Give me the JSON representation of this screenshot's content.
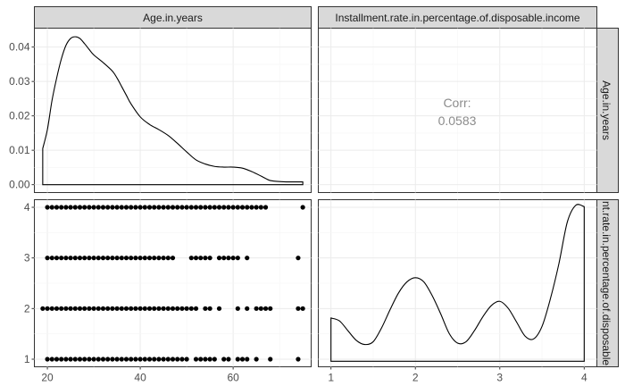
{
  "chart_data": {
    "type": "scatter",
    "layout": "pairs plot (2x2 matrix)",
    "variables": [
      "Age.in.years",
      "Installment.rate.in.percentage.of.disposable.income"
    ],
    "strip_labels": {
      "col1": "Age.in.years",
      "col2": "Installment.rate.in.percentage.of.disposable.income",
      "row1": "Age.in.years",
      "row2": "nt.rate.in.percentage.of.disposable"
    },
    "age_density": {
      "xlim": [
        17.2,
        76.8
      ],
      "ylim": [
        -0.0023,
        0.0455
      ],
      "y_ticks": [
        "0.00",
        "0.01",
        "0.02",
        "0.03",
        "0.04"
      ],
      "y_tick_values": [
        0,
        0.01,
        0.02,
        0.03,
        0.04
      ],
      "x": [
        19,
        20,
        21,
        22,
        23,
        24,
        25,
        26,
        27,
        28,
        29,
        30,
        32,
        34,
        35,
        36,
        37,
        38,
        40,
        42,
        44,
        46,
        48,
        50,
        52,
        54,
        56,
        58,
        60,
        62,
        64,
        66,
        67,
        68,
        70,
        72,
        75
      ],
      "y": [
        0.0105,
        0.016,
        0.0245,
        0.031,
        0.0365,
        0.0405,
        0.0425,
        0.043,
        0.0425,
        0.041,
        0.0393,
        0.0377,
        0.0355,
        0.033,
        0.031,
        0.0285,
        0.026,
        0.0235,
        0.0197,
        0.0175,
        0.016,
        0.0143,
        0.012,
        0.0095,
        0.0072,
        0.006,
        0.0053,
        0.0051,
        0.0051,
        0.0048,
        0.0038,
        0.0025,
        0.0018,
        0.0012,
        0.0009,
        0.0008,
        0.0008
      ]
    },
    "correlation": {
      "label": "Corr:",
      "value": "0.0583"
    },
    "scatter": {
      "xlim": [
        17.2,
        76.8
      ],
      "ylim": [
        0.85,
        4.15
      ],
      "y_ticks": [
        "1",
        "2",
        "3",
        "4"
      ],
      "y_tick_values": [
        1,
        2,
        3,
        4
      ],
      "x_ticks": [
        "20",
        "40",
        "60"
      ],
      "x_tick_values": [
        20,
        40,
        60
      ],
      "xlabel": "",
      "ylabel": "",
      "rows": [
        {
          "y": 4,
          "x": [
            20,
            21,
            22,
            23,
            24,
            25,
            26,
            27,
            28,
            29,
            30,
            31,
            32,
            33,
            34,
            35,
            36,
            37,
            38,
            39,
            40,
            41,
            42,
            43,
            44,
            45,
            46,
            47,
            48,
            49,
            50,
            51,
            52,
            53,
            54,
            55,
            56,
            57,
            58,
            59,
            60,
            61,
            62,
            63,
            64,
            65,
            66,
            67,
            75
          ]
        },
        {
          "y": 3,
          "x": [
            20,
            21,
            22,
            23,
            24,
            25,
            26,
            27,
            28,
            29,
            30,
            31,
            32,
            33,
            34,
            35,
            36,
            37,
            38,
            39,
            40,
            41,
            42,
            43,
            44,
            45,
            46,
            47,
            51,
            52,
            53,
            54,
            55,
            57,
            58,
            59,
            60,
            61,
            63,
            74
          ]
        },
        {
          "y": 2,
          "x": [
            19,
            20,
            21,
            22,
            23,
            24,
            25,
            26,
            27,
            28,
            29,
            30,
            31,
            32,
            33,
            34,
            35,
            36,
            37,
            38,
            39,
            40,
            41,
            42,
            43,
            44,
            45,
            46,
            47,
            48,
            49,
            50,
            51,
            52,
            54,
            55,
            57,
            61,
            63,
            65,
            66,
            67,
            68,
            74,
            75
          ]
        },
        {
          "y": 1,
          "x": [
            20,
            21,
            22,
            23,
            24,
            25,
            26,
            27,
            28,
            29,
            30,
            31,
            32,
            33,
            34,
            35,
            36,
            37,
            38,
            39,
            40,
            41,
            42,
            43,
            44,
            45,
            46,
            47,
            48,
            49,
            50,
            52,
            53,
            54,
            55,
            56,
            58,
            59,
            61,
            62,
            63,
            65,
            68,
            74
          ]
        }
      ]
    },
    "installment_density": {
      "xlim": [
        0.85,
        4.15
      ],
      "ylim": [
        -0.02,
        0.58
      ],
      "x_ticks": [
        "1",
        "2",
        "3",
        "4"
      ],
      "x_tick_values": [
        1,
        2,
        3,
        4
      ],
      "x": [
        1,
        1.1,
        1.2,
        1.3,
        1.4,
        1.5,
        1.6,
        1.7,
        1.8,
        1.9,
        2.0,
        2.1,
        2.2,
        2.3,
        2.4,
        2.5,
        2.6,
        2.7,
        2.8,
        2.9,
        3.0,
        3.1,
        3.2,
        3.3,
        3.4,
        3.5,
        3.6,
        3.7,
        3.8,
        3.9,
        4.0
      ],
      "y": [
        0.155,
        0.145,
        0.11,
        0.075,
        0.06,
        0.07,
        0.12,
        0.185,
        0.245,
        0.285,
        0.3,
        0.285,
        0.235,
        0.17,
        0.1,
        0.065,
        0.07,
        0.11,
        0.16,
        0.2,
        0.215,
        0.19,
        0.14,
        0.09,
        0.08,
        0.125,
        0.225,
        0.35,
        0.5,
        0.56,
        0.555
      ]
    }
  }
}
